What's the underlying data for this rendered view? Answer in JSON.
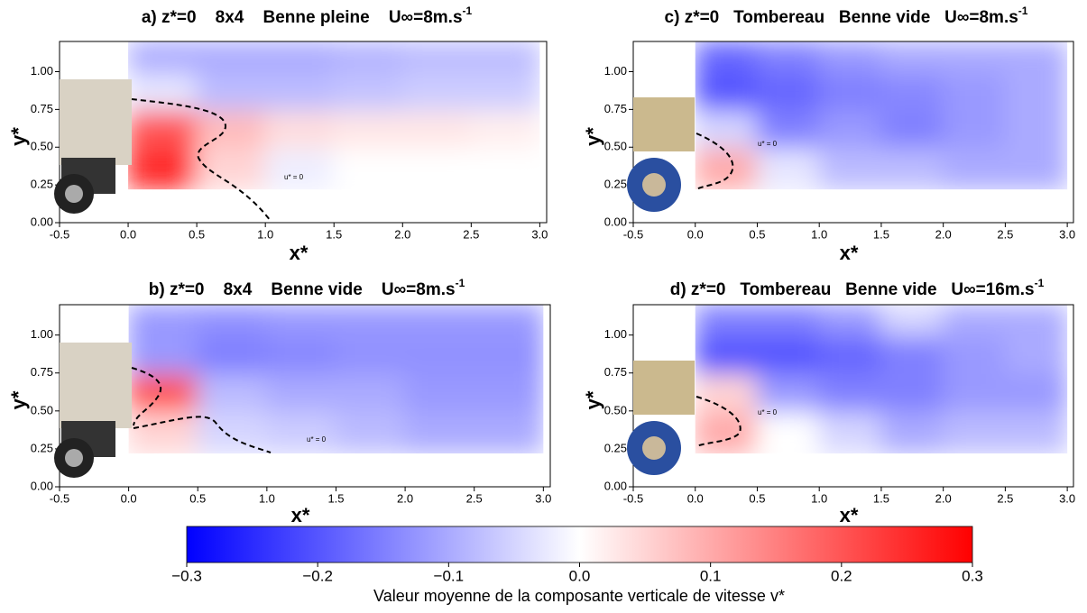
{
  "chart_data": [
    {
      "type": "heatmap",
      "title": "a) z*=0    8x4    Benne pleine    U∞=8m.s",
      "title_sup": "-1",
      "xlabel": "x*",
      "ylabel": "y*",
      "annotation": "u* = 0",
      "xlim": [
        -0.5,
        3.05
      ],
      "ylim": [
        0,
        1.2
      ],
      "xticks": [
        -0.5,
        {
          "value": 0,
          "label": "0.0"
        },
        0.5,
        {
          "value": 1,
          "label": "1.0"
        },
        1.5,
        {
          "value": 2,
          "label": "2.0"
        },
        2.5,
        {
          "value": 3,
          "label": "3.0"
        }
      ],
      "yticks": [
        {
          "value": 0,
          "label": "0.00"
        },
        0.25,
        {
          "value": 0.5,
          "label": "0.50"
        },
        0.75,
        {
          "value": 1,
          "label": "1.00"
        }
      ],
      "field_x": [
        0,
        0.5,
        1,
        1.5,
        2,
        2.5,
        3
      ],
      "field_y": [
        0.22,
        0.5,
        0.75,
        1,
        1.2
      ],
      "field": [
        [
          0.25,
          0.05,
          -0.02,
          0,
          0,
          0
        ],
        [
          0.2,
          0.08,
          0.04,
          0.03,
          0.03,
          0.02
        ],
        [
          -0.03,
          -0.08,
          -0.08,
          -0.07,
          -0.06,
          -0.06
        ],
        [
          -0.1,
          -0.1,
          -0.1,
          -0.09,
          -0.08,
          -0.08
        ]
      ]
    },
    {
      "type": "heatmap",
      "title": "b) z*=0    8x4    Benne vide    U∞=8m.s",
      "title_sup": "-1",
      "xlabel": "x*",
      "ylabel": "y*",
      "annotation": "u* = 0",
      "xlim": [
        -0.5,
        3.05
      ],
      "ylim": [
        0,
        1.2
      ],
      "xticks": [
        -0.5,
        {
          "value": 0,
          "label": "0.0"
        },
        0.5,
        {
          "value": 1,
          "label": "1.0"
        },
        1.5,
        {
          "value": 2,
          "label": "2.0"
        },
        2.5,
        {
          "value": 3,
          "label": "3.0"
        }
      ],
      "yticks": [
        {
          "value": 0,
          "label": "0.00"
        },
        0.25,
        {
          "value": 0.5,
          "label": "0.50"
        },
        0.75,
        {
          "value": 1,
          "label": "1.00"
        }
      ],
      "field_x": [
        0,
        0.5,
        1,
        1.5,
        2,
        2.5,
        3
      ],
      "field_y": [
        0.22,
        0.5,
        0.75,
        1,
        1.2
      ],
      "field": [
        [
          0.05,
          -0.05,
          -0.06,
          -0.08,
          -0.1,
          -0.1
        ],
        [
          0.2,
          -0.08,
          -0.1,
          -0.1,
          -0.12,
          -0.12
        ],
        [
          -0.12,
          -0.15,
          -0.14,
          -0.13,
          -0.13,
          -0.13
        ],
        [
          -0.12,
          -0.13,
          -0.12,
          -0.12,
          -0.12,
          -0.12
        ]
      ]
    },
    {
      "type": "heatmap",
      "title": "c) z*=0   Tombereau   Benne vide   U∞=8m.s",
      "title_sup": "-1",
      "xlabel": "x*",
      "ylabel": "y*",
      "annotation": "u* = 0",
      "xlim": [
        -0.5,
        3.05
      ],
      "ylim": [
        0,
        1.2
      ],
      "xticks": [
        -0.5,
        {
          "value": 0,
          "label": "0.0"
        },
        0.5,
        {
          "value": 1,
          "label": "1.0"
        },
        1.5,
        {
          "value": 2,
          "label": "2.0"
        },
        2.5,
        {
          "value": 3,
          "label": "3.0"
        }
      ],
      "yticks": [
        {
          "value": 0,
          "label": "0.00"
        },
        0.25,
        {
          "value": 0.5,
          "label": "0.50"
        },
        0.75,
        {
          "value": 1,
          "label": "1.00"
        }
      ],
      "field_x": [
        0,
        0.5,
        1,
        1.5,
        2,
        2.5,
        3
      ],
      "field_y": [
        0.22,
        0.5,
        0.75,
        1,
        1.2
      ],
      "field": [
        [
          0.1,
          -0.03,
          -0.08,
          -0.08,
          -0.1,
          -0.1
        ],
        [
          -0.05,
          -0.15,
          -0.12,
          -0.15,
          -0.12,
          -0.1
        ],
        [
          -0.2,
          -0.18,
          -0.15,
          -0.14,
          -0.12,
          -0.1
        ],
        [
          -0.18,
          -0.15,
          -0.12,
          -0.1,
          -0.1,
          -0.1
        ]
      ]
    },
    {
      "type": "heatmap",
      "title": "d) z*=0   Tombereau   Benne vide   U∞=16m.s",
      "title_sup": "-1",
      "xlabel": "x*",
      "ylabel": "y*",
      "annotation": "u* = 0",
      "xlim": [
        -0.5,
        3.05
      ],
      "ylim": [
        0,
        1.2
      ],
      "xticks": [
        -0.5,
        {
          "value": 0,
          "label": "0.0"
        },
        0.5,
        {
          "value": 1,
          "label": "1.0"
        },
        1.5,
        {
          "value": 2,
          "label": "2.0"
        },
        2.5,
        {
          "value": 3,
          "label": "3.0"
        }
      ],
      "yticks": [
        {
          "value": 0,
          "label": "0.00"
        },
        0.25,
        {
          "value": 0.5,
          "label": "0.50"
        },
        0.75,
        {
          "value": 1,
          "label": "1.00"
        }
      ],
      "field_x": [
        0,
        0.5,
        1,
        1.5,
        2,
        2.5,
        3
      ],
      "field_y": [
        0.22,
        0.5,
        0.75,
        1,
        1.2
      ],
      "field": [
        [
          0.1,
          0,
          -0.05,
          -0.1,
          -0.08,
          -0.08
        ],
        [
          0.05,
          -0.12,
          -0.15,
          -0.15,
          -0.12,
          -0.12
        ],
        [
          -0.2,
          -0.2,
          -0.18,
          -0.15,
          -0.12,
          -0.1
        ],
        [
          -0.15,
          -0.15,
          -0.12,
          -0.05,
          -0.1,
          -0.1
        ]
      ]
    },
    {
      "type": "colorbar",
      "label": "Valeur moyenne de la composante verticale de vitesse v*",
      "clim": [
        -0.3,
        0.3
      ],
      "ticks": [
        {
          "value": -0.3,
          "label": "−0.3"
        },
        {
          "value": -0.2,
          "label": "−0.2"
        },
        {
          "value": -0.1,
          "label": "−0.1"
        },
        {
          "value": 0,
          "label": "0.0"
        },
        0.1,
        0.2,
        0.3
      ],
      "colors": [
        "#0000ff",
        "#ffffff",
        "#ff0000"
      ]
    }
  ]
}
